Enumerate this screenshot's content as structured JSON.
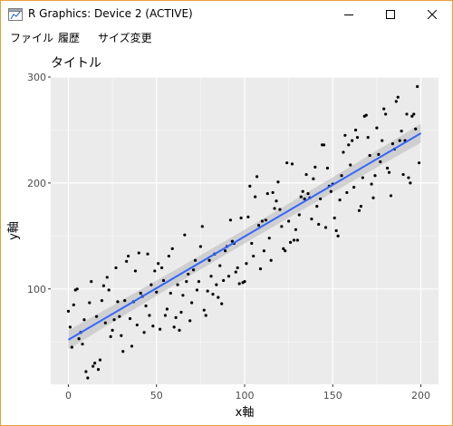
{
  "window": {
    "title": "R Graphics: Device 2 (ACTIVE)",
    "icons": {
      "app": "r-app-icon",
      "minimize": "minimize-icon",
      "maximize": "maximize-icon",
      "close": "close-icon"
    },
    "border_color": "#e6a23c"
  },
  "menu": {
    "items": [
      "ファイル",
      "履歴",
      "サイズ変更"
    ]
  },
  "plot": {
    "title": "タイトル",
    "colors": {
      "panel": "#ebebeb",
      "grid_major": "#ffffff",
      "point": "#000000",
      "smooth_line": "#3366ff",
      "ribbon": "#bdbdbd"
    }
  },
  "chart_data": {
    "type": "scatter",
    "title": "タイトル",
    "xlabel": "x軸",
    "ylabel": "y軸",
    "xlim": [
      -10,
      210
    ],
    "ylim": [
      10,
      300
    ],
    "x_ticks": [
      0,
      50,
      100,
      150,
      200
    ],
    "y_ticks": [
      100,
      200,
      300
    ],
    "grid": true,
    "points": [
      [
        0,
        79
      ],
      [
        1,
        64
      ],
      [
        2,
        45
      ],
      [
        3,
        85
      ],
      [
        4,
        99
      ],
      [
        5,
        100
      ],
      [
        6,
        53
      ],
      [
        7,
        59
      ],
      [
        8,
        48
      ],
      [
        9,
        71
      ],
      [
        10,
        22
      ],
      [
        11,
        16
      ],
      [
        12,
        87
      ],
      [
        13,
        107
      ],
      [
        14,
        27
      ],
      [
        15,
        30
      ],
      [
        16,
        74
      ],
      [
        17,
        24
      ],
      [
        18,
        33
      ],
      [
        19,
        89
      ],
      [
        20,
        103
      ],
      [
        21,
        68
      ],
      [
        22,
        111
      ],
      [
        23,
        99
      ],
      [
        24,
        55
      ],
      [
        25,
        61
      ],
      [
        26,
        71
      ],
      [
        27,
        120
      ],
      [
        28,
        88
      ],
      [
        29,
        74
      ],
      [
        30,
        56
      ],
      [
        31,
        41
      ],
      [
        32,
        89
      ],
      [
        33,
        126
      ],
      [
        34,
        131
      ],
      [
        35,
        72
      ],
      [
        36,
        46
      ],
      [
        37,
        88
      ],
      [
        38,
        117
      ],
      [
        39,
        66
      ],
      [
        40,
        134
      ],
      [
        41,
        96
      ],
      [
        42,
        93
      ],
      [
        43,
        59
      ],
      [
        44,
        84
      ],
      [
        45,
        133
      ],
      [
        46,
        75
      ],
      [
        47,
        104
      ],
      [
        48,
        65
      ],
      [
        49,
        117
      ],
      [
        50,
        97
      ],
      [
        51,
        124
      ],
      [
        52,
        62
      ],
      [
        53,
        120
      ],
      [
        54,
        108
      ],
      [
        55,
        75
      ],
      [
        56,
        81
      ],
      [
        57,
        131
      ],
      [
        58,
        96
      ],
      [
        59,
        138
      ],
      [
        60,
        64
      ],
      [
        61,
        73
      ],
      [
        62,
        104
      ],
      [
        63,
        61
      ],
      [
        64,
        78
      ],
      [
        65,
        94
      ],
      [
        66,
        151
      ],
      [
        67,
        107
      ],
      [
        68,
        114
      ],
      [
        69,
        70
      ],
      [
        70,
        87
      ],
      [
        71,
        118
      ],
      [
        72,
        127
      ],
      [
        73,
        99
      ],
      [
        74,
        107
      ],
      [
        75,
        140
      ],
      [
        76,
        159
      ],
      [
        77,
        80
      ],
      [
        78,
        75
      ],
      [
        79,
        98
      ],
      [
        80,
        127
      ],
      [
        81,
        112
      ],
      [
        82,
        95
      ],
      [
        83,
        133
      ],
      [
        84,
        104
      ],
      [
        85,
        92
      ],
      [
        86,
        122
      ],
      [
        87,
        86
      ],
      [
        88,
        108
      ],
      [
        89,
        136
      ],
      [
        90,
        140
      ],
      [
        91,
        112
      ],
      [
        92,
        165
      ],
      [
        93,
        145
      ],
      [
        94,
        143
      ],
      [
        95,
        116
      ],
      [
        96,
        120
      ],
      [
        97,
        105
      ],
      [
        98,
        167
      ],
      [
        99,
        106
      ],
      [
        100,
        107
      ],
      [
        101,
        124
      ],
      [
        102,
        168
      ],
      [
        103,
        197
      ],
      [
        104,
        143
      ],
      [
        105,
        131
      ],
      [
        106,
        187
      ],
      [
        107,
        206
      ],
      [
        108,
        160
      ],
      [
        109,
        119
      ],
      [
        110,
        164
      ],
      [
        111,
        136
      ],
      [
        112,
        165
      ],
      [
        113,
        190
      ],
      [
        114,
        148
      ],
      [
        115,
        127
      ],
      [
        116,
        191
      ],
      [
        117,
        176
      ],
      [
        118,
        183
      ],
      [
        119,
        201
      ],
      [
        120,
        175
      ],
      [
        121,
        159
      ],
      [
        122,
        138
      ],
      [
        123,
        136
      ],
      [
        124,
        219
      ],
      [
        125,
        164
      ],
      [
        126,
        144
      ],
      [
        127,
        218
      ],
      [
        128,
        146
      ],
      [
        129,
        156
      ],
      [
        130,
        146
      ],
      [
        131,
        170
      ],
      [
        132,
        187
      ],
      [
        133,
        192
      ],
      [
        134,
        185
      ],
      [
        135,
        208
      ],
      [
        136,
        190
      ],
      [
        137,
        186
      ],
      [
        138,
        166
      ],
      [
        139,
        204
      ],
      [
        140,
        215
      ],
      [
        141,
        178
      ],
      [
        142,
        161
      ],
      [
        143,
        185
      ],
      [
        144,
        236
      ],
      [
        145,
        236
      ],
      [
        146,
        158
      ],
      [
        147,
        214
      ],
      [
        148,
        197
      ],
      [
        149,
        192
      ],
      [
        150,
        199
      ],
      [
        151,
        167
      ],
      [
        152,
        155
      ],
      [
        153,
        150
      ],
      [
        154,
        184
      ],
      [
        155,
        207
      ],
      [
        156,
        229
      ],
      [
        157,
        245
      ],
      [
        158,
        191
      ],
      [
        159,
        236
      ],
      [
        160,
        217
      ],
      [
        161,
        240
      ],
      [
        162,
        196
      ],
      [
        163,
        250
      ],
      [
        164,
        243
      ],
      [
        165,
        174
      ],
      [
        166,
        178
      ],
      [
        167,
        205
      ],
      [
        168,
        263
      ],
      [
        169,
        264
      ],
      [
        170,
        243
      ],
      [
        171,
        226
      ],
      [
        172,
        199
      ],
      [
        173,
        186
      ],
      [
        174,
        207
      ],
      [
        175,
        252
      ],
      [
        176,
        227
      ],
      [
        177,
        220
      ],
      [
        178,
        240
      ],
      [
        179,
        270
      ],
      [
        180,
        265
      ],
      [
        181,
        214
      ],
      [
        182,
        210
      ],
      [
        183,
        188
      ],
      [
        184,
        237
      ],
      [
        185,
        232
      ],
      [
        186,
        277
      ],
      [
        187,
        281
      ],
      [
        188,
        240
      ],
      [
        189,
        249
      ],
      [
        190,
        208
      ],
      [
        191,
        240
      ],
      [
        192,
        265
      ],
      [
        193,
        205
      ],
      [
        194,
        200
      ],
      [
        195,
        263
      ],
      [
        196,
        265
      ],
      [
        197,
        251
      ],
      [
        198,
        291
      ],
      [
        199,
        219
      ]
    ],
    "smooth": {
      "method": "lm",
      "x": [
        0,
        200
      ],
      "y": [
        52,
        247
      ],
      "se_halfwidth": [
        9,
        9
      ]
    }
  }
}
